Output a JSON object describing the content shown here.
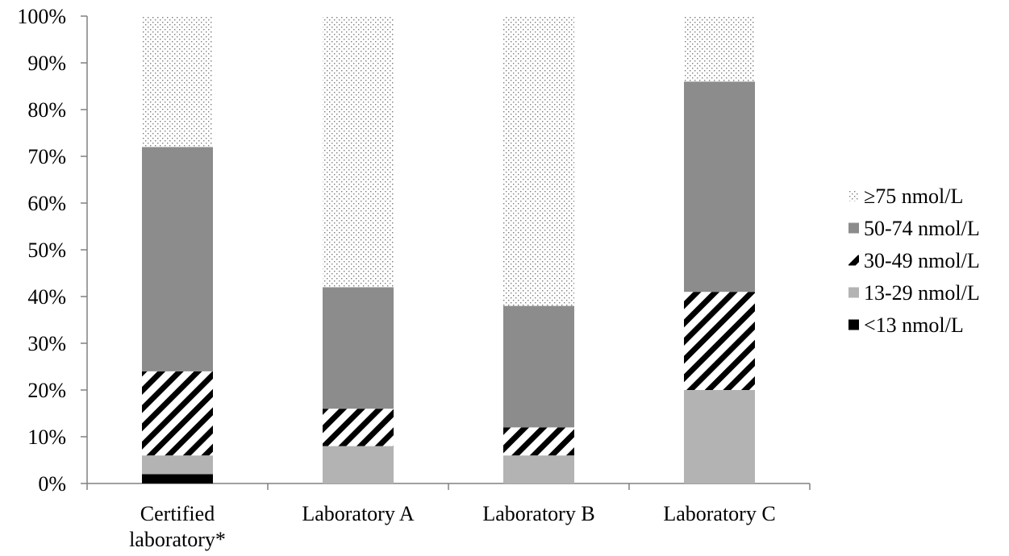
{
  "chart_data": {
    "type": "bar",
    "stacked": true,
    "title": "",
    "xlabel": "",
    "ylabel": "",
    "ylim": [
      0,
      100
    ],
    "y_ticks": [
      "0%",
      "10%",
      "20%",
      "30%",
      "40%",
      "50%",
      "60%",
      "70%",
      "80%",
      "90%",
      "100%"
    ],
    "y_tick_values": [
      0,
      10,
      20,
      30,
      40,
      50,
      60,
      70,
      80,
      90,
      100
    ],
    "categories": [
      [
        "Certified",
        "laboratory*"
      ],
      [
        "Laboratory A"
      ],
      [
        "Laboratory B"
      ],
      [
        "Laboratory C"
      ]
    ],
    "series": [
      {
        "name": "<13 nmol/L",
        "values": [
          2,
          0,
          0,
          0
        ],
        "pattern": "solid-black"
      },
      {
        "name": "13-29 nmol/L",
        "values": [
          4,
          8,
          6,
          20
        ],
        "pattern": "solid-lightgray"
      },
      {
        "name": "30-49 nmol/L",
        "values": [
          18,
          8,
          6,
          21
        ],
        "pattern": "diagonal-stripes"
      },
      {
        "name": "50-74 nmol/L",
        "values": [
          48,
          26,
          26,
          45
        ],
        "pattern": "solid-darkgray"
      },
      {
        "name": "≥75 nmol/L",
        "values": [
          28,
          58,
          62,
          14
        ],
        "pattern": "dotted"
      }
    ],
    "legend_order": [
      4,
      3,
      2,
      1,
      0
    ],
    "legend_position": "right",
    "grid": false,
    "colors": {
      "solid-black": "#000000",
      "solid-lightgray": "#b3b3b3",
      "solid-darkgray": "#8c8c8c",
      "axis": "#808080"
    }
  }
}
